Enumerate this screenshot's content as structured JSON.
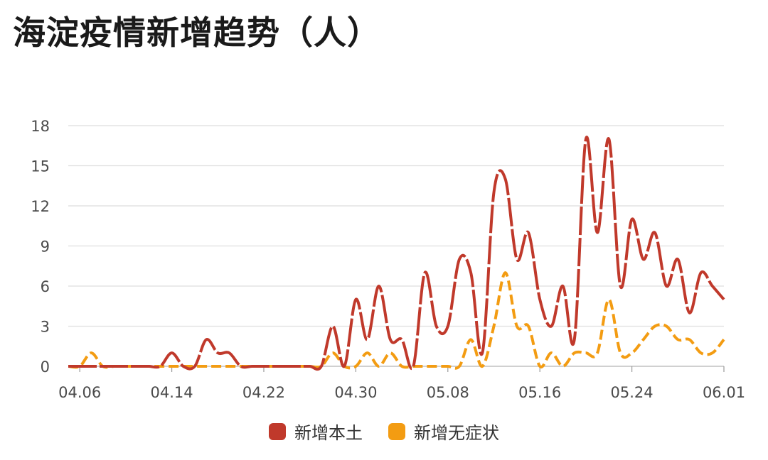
{
  "chart_data": {
    "type": "line",
    "title": "海淀疫情新增趋势（人）",
    "ylim": [
      0,
      18
    ],
    "y_ticks": [
      "0",
      "3",
      "6",
      "9",
      "12",
      "15",
      "18"
    ],
    "x_tick_labels": [
      "04.06",
      "04.14",
      "04.22",
      "04.30",
      "05.08",
      "05.16",
      "05.24",
      "06.01"
    ],
    "x_dates": [
      "04.05",
      "04.06",
      "04.07",
      "04.08",
      "04.09",
      "04.10",
      "04.11",
      "04.12",
      "04.13",
      "04.14",
      "04.15",
      "04.16",
      "04.17",
      "04.18",
      "04.19",
      "04.20",
      "04.21",
      "04.22",
      "04.23",
      "04.24",
      "04.25",
      "04.26",
      "04.27",
      "04.28",
      "04.29",
      "04.30",
      "05.01",
      "05.02",
      "05.03",
      "05.04",
      "05.05",
      "05.06",
      "05.07",
      "05.08",
      "05.09",
      "05.10",
      "05.11",
      "05.12",
      "05.13",
      "05.14",
      "05.15",
      "05.16",
      "05.17",
      "05.18",
      "05.19",
      "05.20",
      "05.21",
      "05.22",
      "05.23",
      "05.24",
      "05.25",
      "05.26",
      "05.27",
      "05.28",
      "05.29",
      "05.30",
      "05.31",
      "06.01"
    ],
    "grid": true,
    "legend_position": "bottom",
    "series": [
      {
        "name": "新增本土",
        "color": "#c0392b",
        "values": [
          0,
          0,
          0,
          0,
          0,
          0,
          0,
          0,
          0,
          1,
          0,
          0,
          2,
          1,
          1,
          0,
          0,
          0,
          0,
          0,
          0,
          0,
          0,
          3,
          0,
          5,
          2,
          6,
          2,
          2,
          0,
          7,
          3,
          3,
          8,
          7,
          1,
          13,
          14,
          8,
          10,
          5,
          3,
          6,
          2,
          17,
          10,
          17,
          6,
          11,
          8,
          10,
          6,
          8,
          4,
          7,
          6,
          5
        ]
      },
      {
        "name": "新增无症状",
        "color": "#f39c12",
        "values": [
          0,
          0,
          1,
          0,
          0,
          0,
          0,
          0,
          0,
          0,
          0,
          0,
          0,
          0,
          0,
          0,
          0,
          0,
          0,
          0,
          0,
          0,
          0,
          1,
          0,
          0,
          1,
          0,
          1,
          0,
          0,
          0,
          0,
          0,
          0,
          2,
          0,
          3,
          7,
          3,
          3,
          0,
          1,
          0,
          1,
          1,
          1,
          5,
          1,
          1,
          2,
          3,
          3,
          2,
          2,
          1,
          1,
          2
        ]
      }
    ]
  }
}
